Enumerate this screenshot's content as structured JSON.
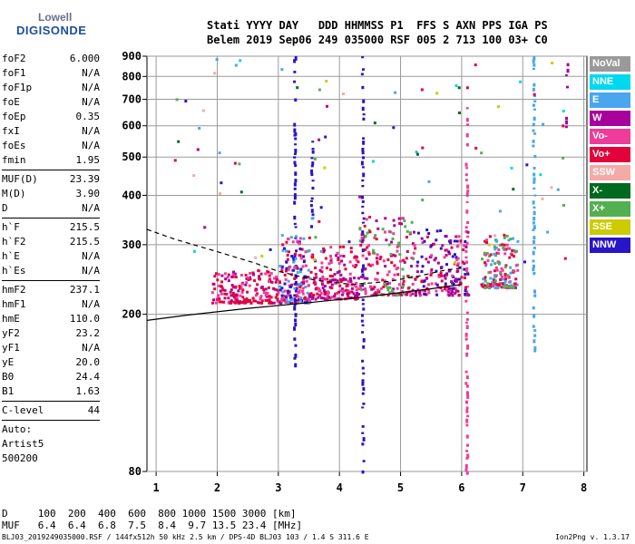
{
  "logo": {
    "line1": "Lowell",
    "line2": "DIGISONDE"
  },
  "header": {
    "line1": "Stati YYYY DAY   DDD HHMMSS P1  FFS S AXN PPS IGA PS",
    "line2": "Belem 2019 Sep06 249 035000 RSF 005 2 713 100 03+ C0"
  },
  "params": {
    "group1": [
      [
        "foF2",
        "6.000"
      ],
      [
        "foF1",
        "N/A"
      ],
      [
        "foF1p",
        "N/A"
      ],
      [
        "foE",
        "N/A"
      ],
      [
        "foEp",
        "0.35"
      ],
      [
        "fxI",
        "N/A"
      ],
      [
        "foEs",
        "N/A"
      ],
      [
        "fmin",
        "1.95"
      ]
    ],
    "group2": [
      [
        "MUF(D)",
        "23.39"
      ],
      [
        "M(D)",
        "3.90"
      ],
      [
        "D",
        "N/A"
      ]
    ],
    "group3": [
      [
        "h`F",
        "215.5"
      ],
      [
        "h`F2",
        "215.5"
      ],
      [
        "h`E",
        "N/A"
      ],
      [
        "h`Es",
        "N/A"
      ]
    ],
    "group4": [
      [
        "hmF2",
        "237.1"
      ],
      [
        "hmF1",
        "N/A"
      ],
      [
        "hmE",
        "110.0"
      ],
      [
        "yF2",
        "23.2"
      ],
      [
        "yF1",
        "N/A"
      ],
      [
        "yE",
        "20.0"
      ],
      [
        "B0",
        "24.4"
      ],
      [
        "B1",
        "1.63"
      ]
    ],
    "group5": [
      [
        "C-level",
        "44"
      ]
    ],
    "auto": [
      "Auto:",
      "Artist5",
      "500200"
    ]
  },
  "legend": [
    {
      "label": "NoVal",
      "color": "#9a9a9a"
    },
    {
      "label": "NNE",
      "color": "#00d8f0"
    },
    {
      "label": "E",
      "color": "#4aa6ee"
    },
    {
      "label": "W",
      "color": "#a8009c"
    },
    {
      "label": "Vo-",
      "color": "#ee3c9a"
    },
    {
      "label": "Vo+",
      "color": "#e4003a"
    },
    {
      "label": "SSW",
      "color": "#f5aaa8"
    },
    {
      "label": "X-",
      "color": "#006a1e"
    },
    {
      "label": "X+",
      "color": "#52b050"
    },
    {
      "label": "SSE",
      "color": "#cccc00"
    },
    {
      "label": "NNW",
      "color": "#2a14c8"
    }
  ],
  "footer": {
    "d_row": "D     100  200  400  600  800 1000 1500 3000 [km]",
    "muf_row": "MUF   6.4  6.4  6.8  7.5  8.4  9.7 13.5 23.4 [MHz]",
    "info": "BLJ03_2019249035000.RSF / 144fx512h 50 kHz 2.5 km / DPS-4D BLJ03 103 / 1.4 S 311.6 E",
    "version": "Ion2Png v. 1.3.17"
  },
  "chart_data": {
    "type": "scatter",
    "xlim": [
      0.85,
      8.05
    ],
    "ylim_log": [
      80,
      900
    ],
    "xticks": [
      1,
      2,
      3,
      4,
      5,
      6,
      7,
      8
    ],
    "yticks": [
      80,
      200,
      300,
      400,
      500,
      600,
      700,
      800,
      900
    ],
    "grid": true,
    "trace_solid": [
      [
        0.85,
        193
      ],
      [
        1.5,
        199
      ],
      [
        2.5,
        207
      ],
      [
        3.5,
        214
      ],
      [
        4.5,
        222
      ],
      [
        5.5,
        232
      ],
      [
        6.0,
        238
      ]
    ],
    "trace_dashed": [
      [
        0.85,
        328
      ],
      [
        1.3,
        310
      ],
      [
        2.0,
        288
      ],
      [
        2.6,
        270
      ],
      [
        3.0,
        257
      ],
      [
        3.6,
        244
      ],
      [
        4.2,
        238
      ],
      [
        4.8,
        242
      ],
      [
        5.3,
        250
      ],
      [
        5.7,
        258
      ],
      [
        6.0,
        262
      ]
    ],
    "clusters": [
      {
        "x": [
          1.9,
          3.0
        ],
        "y": [
          215,
          260
        ],
        "colors": [
          "#e4003a",
          "#ee3c9a",
          "#a8009c",
          "#e4003a"
        ]
      },
      {
        "x": [
          3.0,
          3.5
        ],
        "y": [
          215,
          320
        ],
        "colors": [
          "#e4003a",
          "#2a14c8",
          "#ee3c9a",
          "#4aa6ee"
        ]
      },
      {
        "x": [
          3.5,
          4.3
        ],
        "y": [
          220,
          300
        ],
        "colors": [
          "#e4003a",
          "#ee3c9a",
          "#a8009c"
        ]
      },
      {
        "x": [
          4.3,
          5.2
        ],
        "y": [
          225,
          360
        ],
        "colors": [
          "#e4003a",
          "#a8009c",
          "#52b050",
          "#ee3c9a"
        ]
      },
      {
        "x": [
          5.2,
          6.1
        ],
        "y": [
          225,
          330
        ],
        "colors": [
          "#e4003a",
          "#ee3c9a",
          "#a8009c",
          "#2a14c8"
        ]
      },
      {
        "x": [
          6.3,
          6.9
        ],
        "y": [
          235,
          320
        ],
        "colors": [
          "#e4003a",
          "#ee3c9a",
          "#4aa6ee",
          "#52b050"
        ]
      }
    ],
    "vertical_streaks": [
      {
        "x": 3.27,
        "y": [
          150,
          900
        ],
        "color": "#2a14c8"
      },
      {
        "x": 3.55,
        "y": [
          330,
          550
        ],
        "color": "#2a14c8"
      },
      {
        "x": 4.38,
        "y": [
          80,
          900
        ],
        "color": "#2a14c8"
      },
      {
        "x": 6.08,
        "y": [
          80,
          700
        ],
        "color": "#ee3c9a"
      },
      {
        "x": 7.18,
        "y": [
          160,
          900
        ],
        "color": "#4aa6ee"
      },
      {
        "x": 7.72,
        "y": [
          580,
          900
        ],
        "color": "#a8009c"
      }
    ]
  }
}
